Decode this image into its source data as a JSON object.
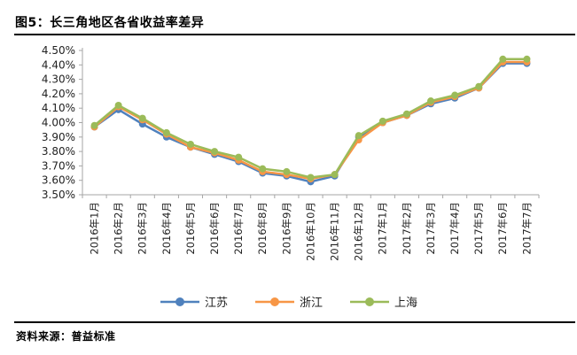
{
  "header": {
    "title": "图5：长三角地区各省收益率差异"
  },
  "footer": {
    "source": "资料来源：普益标准"
  },
  "colors": {
    "jiangsu_blue": "#4F81BD",
    "zhejiang_orange": "#F79646",
    "shanghai_green": "#9BBB59",
    "axis_gray": "#A6A6A6",
    "tick_text": "#222222",
    "rule_black": "#000000"
  },
  "chart_data": {
    "type": "line",
    "title": "图5：长三角地区各省收益率差异",
    "xlabel": "",
    "ylabel": "",
    "ylim": [
      3.5,
      4.5
    ],
    "ytick_step": 0.1,
    "ytick_labels": [
      "4.50%",
      "4.40%",
      "4.30%",
      "4.20%",
      "4.10%",
      "4.00%",
      "3.90%",
      "3.80%",
      "3.70%",
      "3.60%",
      "3.50%"
    ],
    "grid": false,
    "legend_position": "bottom",
    "marker": "circle",
    "categories": [
      "2016年1月",
      "2016年2月",
      "2016年3月",
      "2016年4月",
      "2016年5月",
      "2016年6月",
      "2016年7月",
      "2016年8月",
      "2016年9月",
      "2016年10月",
      "2016年11月",
      "2016年12月",
      "2017年1月",
      "2017年2月",
      "2017年3月",
      "2017年4月",
      "2017年5月",
      "2017年6月",
      "2017年7月"
    ],
    "series": [
      {
        "name": "江苏",
        "color": "#4F81BD",
        "values": [
          3.97,
          4.09,
          3.99,
          3.9,
          3.83,
          3.78,
          3.73,
          3.65,
          3.63,
          3.59,
          3.63,
          3.9,
          4.0,
          4.05,
          4.13,
          4.17,
          4.24,
          4.41,
          4.41
        ]
      },
      {
        "name": "浙江",
        "color": "#F79646",
        "values": [
          3.97,
          4.11,
          4.02,
          3.92,
          3.83,
          3.79,
          3.74,
          3.66,
          3.64,
          3.61,
          3.64,
          3.88,
          4.0,
          4.05,
          4.14,
          4.18,
          4.24,
          4.42,
          4.42
        ]
      },
      {
        "name": "上海",
        "color": "#9BBB59",
        "values": [
          3.98,
          4.12,
          4.03,
          3.93,
          3.85,
          3.8,
          3.76,
          3.68,
          3.66,
          3.62,
          3.64,
          3.91,
          4.01,
          4.06,
          4.15,
          4.19,
          4.25,
          4.44,
          4.44
        ]
      }
    ]
  }
}
